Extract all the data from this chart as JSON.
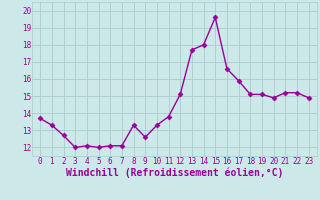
{
  "x": [
    0,
    1,
    2,
    3,
    4,
    5,
    6,
    7,
    8,
    9,
    10,
    11,
    12,
    13,
    14,
    15,
    16,
    17,
    18,
    19,
    20,
    21,
    22,
    23
  ],
  "y": [
    13.7,
    13.3,
    12.7,
    12.0,
    12.1,
    12.0,
    12.1,
    12.1,
    13.3,
    12.6,
    13.3,
    13.8,
    15.1,
    17.7,
    18.0,
    19.6,
    16.6,
    15.9,
    15.1,
    15.1,
    14.9,
    15.2,
    15.2,
    14.9
  ],
  "line_color": "#990099",
  "marker": "D",
  "marker_size": 2.5,
  "bg_color": "#cce8e8",
  "grid_color": "#aacccc",
  "xlabel": "Windchill (Refroidissement éolien,°C)",
  "ylim": [
    11.5,
    20.5
  ],
  "yticks": [
    12,
    13,
    14,
    15,
    16,
    17,
    18,
    19,
    20
  ],
  "xticks": [
    0,
    1,
    2,
    3,
    4,
    5,
    6,
    7,
    8,
    9,
    10,
    11,
    12,
    13,
    14,
    15,
    16,
    17,
    18,
    19,
    20,
    21,
    22,
    23
  ],
  "tick_fontsize": 5.5,
  "xlabel_fontsize": 7,
  "line_width": 1.0
}
